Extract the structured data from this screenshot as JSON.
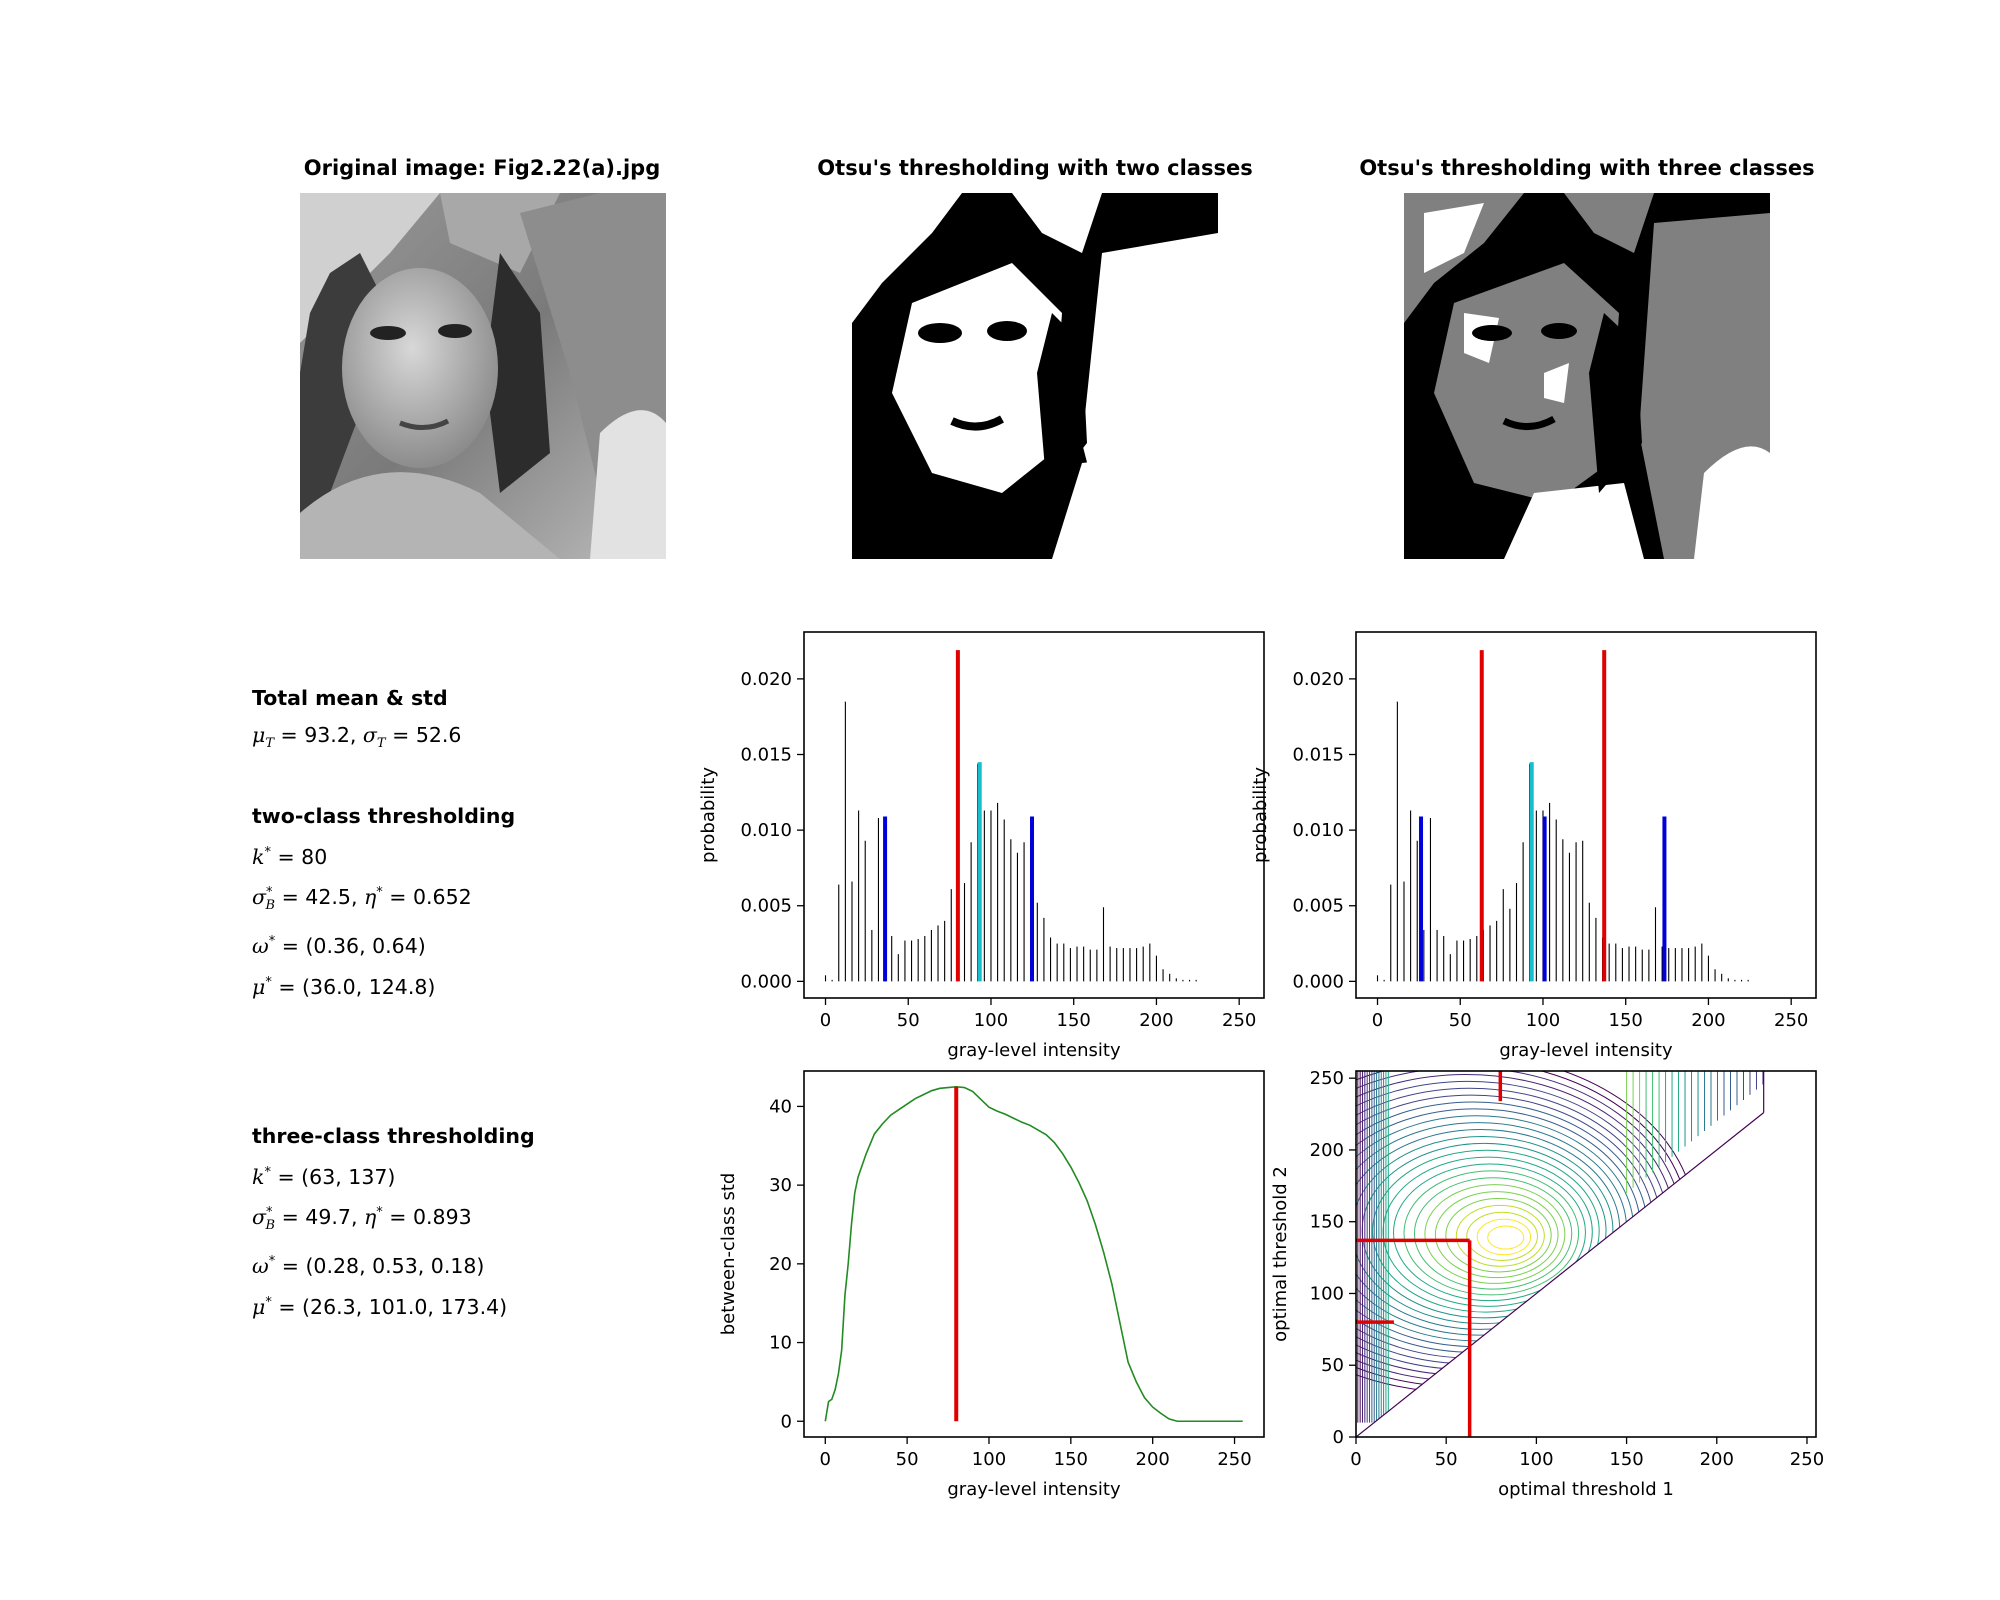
{
  "titles": {
    "original": "Original image: Fig2.22(a).jpg",
    "two_class": "Otsu's thresholding with two classes",
    "three_class": "Otsu's thresholding with three classes"
  },
  "stats": {
    "total_head": "Total mean & std",
    "total_line": "μT = 93.2, σT = 52.6",
    "total_mu": "93.2",
    "total_sigma": "52.6",
    "two_head": "two-class thresholding",
    "two_k": "80",
    "two_sigma": "42.5",
    "two_eta": "0.652",
    "two_omega": "(0.36, 0.64)",
    "two_mu": "(36.0, 124.8)",
    "three_head": "three-class thresholding",
    "three_k": "(63, 137)",
    "three_sigma": "49.7",
    "three_eta": "0.893",
    "three_omega": "(0.28, 0.53, 0.18)",
    "three_mu": "(26.3, 101.0, 173.4)"
  },
  "chart_data": [
    {
      "id": "hist_two",
      "type": "bar",
      "xlabel": "gray-level intensity",
      "ylabel": "probability",
      "xlim": [
        -13,
        265
      ],
      "ylim": [
        -0.0011,
        0.0231
      ],
      "xticks": [
        0,
        50,
        100,
        150,
        200,
        250
      ],
      "yticks": [
        0.0,
        0.005,
        0.01,
        0.015,
        0.02
      ],
      "ytick_labels": [
        "0.000",
        "0.005",
        "0.010",
        "0.015",
        "0.020"
      ],
      "histogram": {
        "x": [
          0,
          4,
          8,
          12,
          16,
          20,
          24,
          28,
          32,
          36,
          40,
          44,
          48,
          52,
          56,
          60,
          64,
          68,
          72,
          76,
          80,
          84,
          88,
          92,
          96,
          100,
          104,
          108,
          112,
          116,
          120,
          124,
          128,
          132,
          136,
          140,
          144,
          148,
          152,
          156,
          160,
          164,
          168,
          172,
          176,
          180,
          184,
          188,
          192,
          196,
          200,
          204,
          208,
          212,
          216,
          220,
          224
        ],
        "values": [
          0.0004,
          0.0001,
          0.0064,
          0.0185,
          0.0066,
          0.0113,
          0.0093,
          0.0034,
          0.0108,
          0.0034,
          0.003,
          0.0018,
          0.0027,
          0.0027,
          0.0028,
          0.003,
          0.0034,
          0.0037,
          0.004,
          0.0061,
          0.0048,
          0.0065,
          0.0092,
          0.0144,
          0.0113,
          0.0113,
          0.0118,
          0.0107,
          0.0094,
          0.0085,
          0.0092,
          0.0093,
          0.0052,
          0.0042,
          0.0029,
          0.0025,
          0.0025,
          0.0022,
          0.0023,
          0.0023,
          0.0021,
          0.0021,
          0.0049,
          0.0023,
          0.0022,
          0.0022,
          0.0022,
          0.0022,
          0.0023,
          0.0025,
          0.0017,
          0.0008,
          0.0005,
          0.0002,
          0.0001,
          0.0001,
          0.0001
        ]
      },
      "threshold_lines": [
        {
          "x": 80,
          "color": "#e00000"
        }
      ],
      "mean_lines": [
        {
          "x": 36.0,
          "color": "#0000d8"
        },
        {
          "x": 124.8,
          "color": "#0000d8"
        }
      ],
      "total_mean_line": {
        "x": 93.2,
        "color": "#17becf"
      }
    },
    {
      "id": "hist_three",
      "type": "bar",
      "xlabel": "gray-level intensity",
      "ylabel": "probability",
      "xlim": [
        -13,
        265
      ],
      "ylim": [
        -0.0011,
        0.0231
      ],
      "xticks": [
        0,
        50,
        100,
        150,
        200,
        250
      ],
      "yticks": [
        0.0,
        0.005,
        0.01,
        0.015,
        0.02
      ],
      "ytick_labels": [
        "0.000",
        "0.005",
        "0.010",
        "0.015",
        "0.020"
      ],
      "threshold_lines": [
        {
          "x": 63,
          "color": "#e00000"
        },
        {
          "x": 137,
          "color": "#e00000"
        }
      ],
      "mean_lines": [
        {
          "x": 26.3,
          "color": "#0000d8"
        },
        {
          "x": 101.0,
          "color": "#0000d8"
        },
        {
          "x": 173.4,
          "color": "#0000d8"
        }
      ],
      "total_mean_line": {
        "x": 93.2,
        "color": "#17becf"
      }
    },
    {
      "id": "between_class",
      "type": "line",
      "xlabel": "gray-level intensity",
      "ylabel": "between-class std",
      "xlim": [
        -13,
        268
      ],
      "ylim": [
        -2,
        44.5
      ],
      "xticks": [
        0,
        50,
        100,
        150,
        200,
        250
      ],
      "yticks": [
        0,
        10,
        20,
        30,
        40
      ],
      "curve": {
        "x": [
          0,
          2,
          4,
          6,
          8,
          10,
          12,
          14,
          16,
          18,
          20,
          25,
          30,
          35,
          40,
          45,
          50,
          55,
          60,
          65,
          70,
          75,
          80,
          85,
          90,
          95,
          100,
          105,
          110,
          115,
          120,
          125,
          130,
          135,
          140,
          145,
          150,
          155,
          160,
          165,
          170,
          175,
          180,
          185,
          190,
          195,
          200,
          205,
          210,
          215,
          220,
          225,
          230,
          235,
          240,
          245,
          250,
          255
        ],
        "values": [
          0,
          2.5,
          2.8,
          4,
          6,
          9,
          16,
          20,
          25,
          29,
          31,
          34,
          36.5,
          37.8,
          38.9,
          39.6,
          40.3,
          41,
          41.5,
          42,
          42.3,
          42.4,
          42.5,
          42.4,
          41.9,
          40.9,
          39.9,
          39.4,
          39,
          38.5,
          38,
          37.6,
          37,
          36.4,
          35.4,
          34,
          32.3,
          30.3,
          28,
          25,
          21.5,
          17.5,
          12.5,
          7.5,
          5,
          3,
          1.8,
          1,
          0.3,
          0,
          0,
          0,
          0,
          0,
          0,
          0,
          0,
          0
        ]
      },
      "line_color": "#228b22",
      "threshold_line": {
        "x": 80,
        "color": "#e00000"
      }
    },
    {
      "id": "contour",
      "type": "contour",
      "xlabel": "optimal threshold 1",
      "ylabel": "optimal threshold 2",
      "xlim": [
        0,
        255
      ],
      "ylim": [
        0,
        255
      ],
      "xticks": [
        0,
        50,
        100,
        150,
        200,
        250
      ],
      "yticks": [
        0,
        50,
        100,
        150,
        200,
        250
      ],
      "optimum": [
        63,
        137
      ],
      "colormap": "viridis"
    }
  ]
}
